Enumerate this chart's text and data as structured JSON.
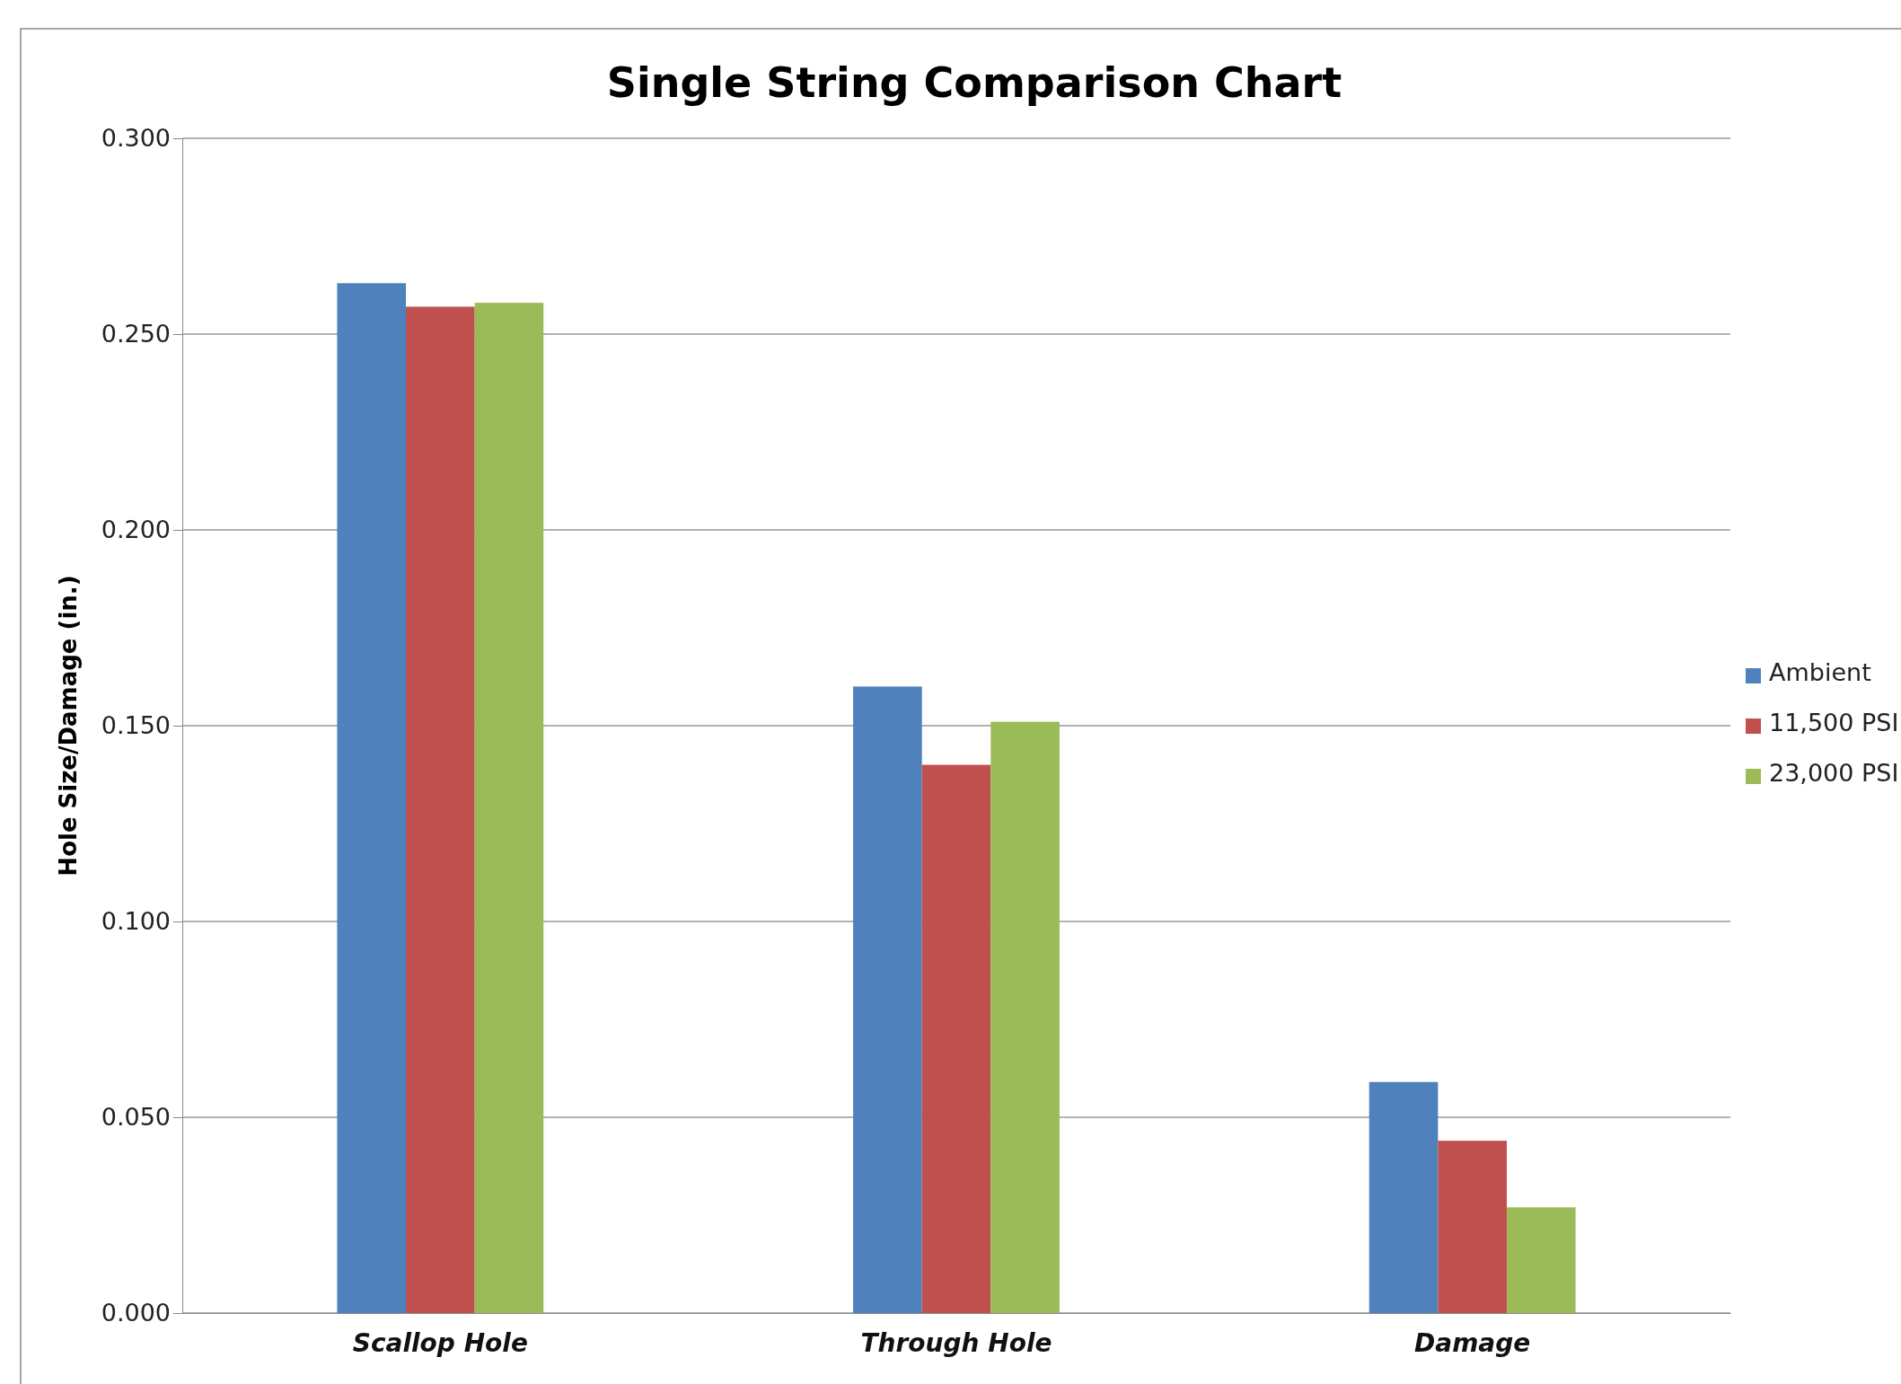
{
  "chart_data": {
    "type": "bar",
    "title": "Single String Comparison Chart",
    "ylabel": "Hole Size/Damage (in.)",
    "categories": [
      "Scallop Hole",
      "Through Hole",
      "Damage"
    ],
    "series": [
      {
        "name": "Ambient",
        "color": "#4f81bd",
        "values": [
          0.263,
          0.16,
          0.059
        ]
      },
      {
        "name": "11,500 PSI",
        "color": "#c0504d",
        "values": [
          0.257,
          0.14,
          0.044
        ]
      },
      {
        "name": "23,000 PSI",
        "color": "#9bbb59",
        "values": [
          0.258,
          0.151,
          0.027
        ]
      }
    ],
    "ylim": [
      0,
      0.3
    ],
    "yticks": [
      {
        "value": 0,
        "label": "0.000"
      },
      {
        "value": 0.05,
        "label": "0.050"
      },
      {
        "value": 0.1,
        "label": "0.100"
      },
      {
        "value": 0.15,
        "label": "0.150"
      },
      {
        "value": 0.2,
        "label": "0.200"
      },
      {
        "value": 0.25,
        "label": "0.250"
      },
      {
        "value": 0.3,
        "label": "0.300"
      }
    ],
    "grid": "y",
    "legend": "right"
  }
}
